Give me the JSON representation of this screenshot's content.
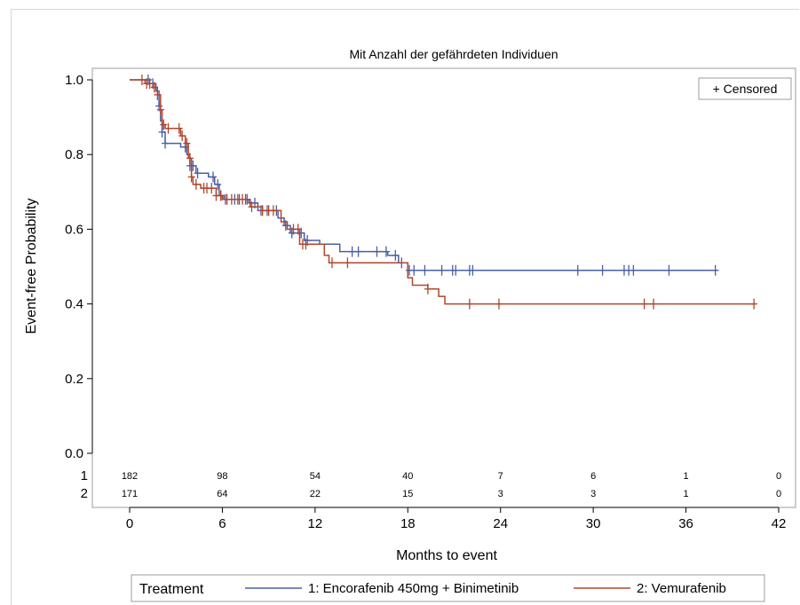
{
  "chart_data": {
    "type": "line",
    "subtype": "kaplan-meier",
    "title": "Mit Anzahl der gefährdeten Individuen",
    "xlabel": "Months to event",
    "ylabel": "Event-free Probability",
    "xlim": [
      0,
      42
    ],
    "ylim": [
      0,
      1
    ],
    "xticks": [
      "0",
      "6",
      "12",
      "18",
      "24",
      "30",
      "36",
      "42"
    ],
    "yticks": [
      "0.0",
      "0.2",
      "0.4",
      "0.6",
      "0.8",
      "1.0"
    ],
    "censored_legend": "+ Censored",
    "legend_title": "Treatment",
    "legend_position": "bottom",
    "series": [
      {
        "name": "1: Encorafenib 450mg + Binimetinib",
        "color": "#4a5fa5",
        "steps": [
          [
            0,
            1.0
          ],
          [
            1.3,
            0.99
          ],
          [
            1.7,
            0.97
          ],
          [
            1.9,
            0.93
          ],
          [
            2.0,
            0.89
          ],
          [
            2.1,
            0.86
          ],
          [
            2.3,
            0.83
          ],
          [
            3.3,
            0.82
          ],
          [
            3.7,
            0.8
          ],
          [
            3.9,
            0.77
          ],
          [
            4.3,
            0.75
          ],
          [
            5.1,
            0.74
          ],
          [
            5.5,
            0.72
          ],
          [
            5.8,
            0.69
          ],
          [
            6.1,
            0.68
          ],
          [
            7.7,
            0.67
          ],
          [
            8.3,
            0.65
          ],
          [
            9.6,
            0.63
          ],
          [
            10.0,
            0.61
          ],
          [
            10.4,
            0.59
          ],
          [
            11.3,
            0.57
          ],
          [
            12.3,
            0.56
          ],
          [
            13.6,
            0.54
          ],
          [
            16.7,
            0.53
          ],
          [
            17.4,
            0.51
          ],
          [
            18.0,
            0.49
          ],
          [
            38.0,
            0.49
          ]
        ],
        "censored_x": [
          1.2,
          1.5,
          1.9,
          2.1,
          2.3,
          3.6,
          3.9,
          4.1,
          4.4,
          5.4,
          5.7,
          5.9,
          6.2,
          6.8,
          7.1,
          7.6,
          8.1,
          8.5,
          8.9,
          9.5,
          10.1,
          10.5,
          11.1,
          11.5,
          14.4,
          14.8,
          16.0,
          16.6,
          17.2,
          17.6,
          18.1,
          18.4,
          19.1,
          20.2,
          20.9,
          21.1,
          22.0,
          22.2,
          29.0,
          30.6,
          32.0,
          32.3,
          32.6,
          34.9,
          37.9
        ],
        "risk": [
          182,
          98,
          54,
          40,
          7,
          6,
          1,
          0
        ]
      },
      {
        "name": "2: Vemurafenib",
        "color": "#b0462e",
        "steps": [
          [
            0,
            1.0
          ],
          [
            1.0,
            0.99
          ],
          [
            1.5,
            0.98
          ],
          [
            1.8,
            0.96
          ],
          [
            2.0,
            0.92
          ],
          [
            2.1,
            0.88
          ],
          [
            2.3,
            0.87
          ],
          [
            3.3,
            0.85
          ],
          [
            3.6,
            0.83
          ],
          [
            3.8,
            0.79
          ],
          [
            4.0,
            0.74
          ],
          [
            4.1,
            0.72
          ],
          [
            4.6,
            0.71
          ],
          [
            5.6,
            0.69
          ],
          [
            6.0,
            0.68
          ],
          [
            7.8,
            0.66
          ],
          [
            8.6,
            0.65
          ],
          [
            9.8,
            0.62
          ],
          [
            10.2,
            0.6
          ],
          [
            11.0,
            0.56
          ],
          [
            12.6,
            0.53
          ],
          [
            12.9,
            0.51
          ],
          [
            18.0,
            0.47
          ],
          [
            18.3,
            0.45
          ],
          [
            19.3,
            0.44
          ],
          [
            20.0,
            0.42
          ],
          [
            20.4,
            0.4
          ],
          [
            40.5,
            0.4
          ]
        ],
        "censored_x": [
          0.8,
          1.1,
          1.3,
          1.6,
          1.8,
          2.0,
          2.2,
          2.5,
          3.2,
          3.4,
          3.7,
          3.9,
          4.0,
          4.3,
          4.8,
          5.0,
          5.3,
          5.6,
          5.9,
          6.3,
          6.6,
          7.0,
          7.3,
          7.5,
          7.9,
          8.6,
          9.0,
          9.3,
          10.6,
          10.9,
          11.2,
          11.4,
          13.1,
          14.1,
          19.3,
          22.0,
          23.9,
          33.3,
          33.9,
          40.4
        ],
        "risk": [
          171,
          64,
          22,
          15,
          3,
          3,
          1,
          0
        ]
      }
    ],
    "risk_table": {
      "rows": [
        "1",
        "2"
      ],
      "x": [
        0,
        6,
        12,
        18,
        24,
        30,
        36,
        42
      ]
    }
  }
}
